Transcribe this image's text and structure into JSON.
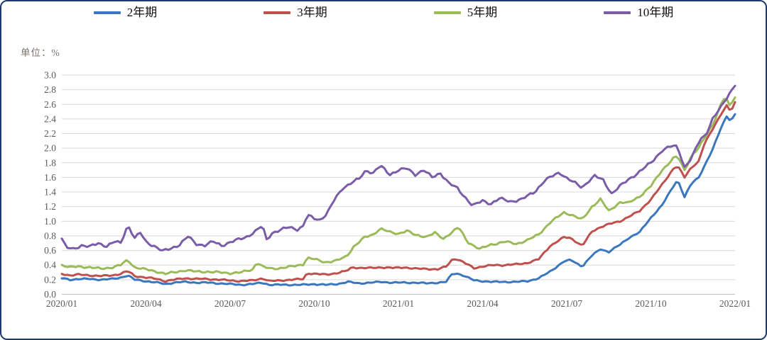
{
  "chart_data": {
    "type": "line",
    "title": "",
    "unit_label": "单位：%",
    "x_axis": {
      "ticks": [
        "2020/01",
        "2020/04",
        "2020/07",
        "2020/10",
        "2021/01",
        "2021/04",
        "2021/07",
        "2021/10",
        "2022/01"
      ],
      "tick_interval_months": 3,
      "range_months": [
        0,
        24
      ]
    },
    "y_axis": {
      "min": 0.0,
      "max": 3.0,
      "step": 0.2,
      "tick_labels": [
        "0.0",
        "0.2",
        "0.4",
        "0.6",
        "0.8",
        "1.0",
        "1.2",
        "1.4",
        "1.6",
        "1.8",
        "2.0",
        "2.2",
        "2.4",
        "2.6",
        "2.8",
        "3.0"
      ]
    },
    "grid": "horizontal",
    "legend_position": "top",
    "gridline_color": "#d9d9d9",
    "axis_line_color": "#bfbfbf",
    "series": [
      {
        "name": "2年期",
        "color": "#3a77bf",
        "points": [
          [
            0,
            0.22
          ],
          [
            0.3,
            0.2
          ],
          [
            0.6,
            0.21
          ],
          [
            1,
            0.21
          ],
          [
            1.4,
            0.2
          ],
          [
            1.8,
            0.21
          ],
          [
            2.1,
            0.23
          ],
          [
            2.35,
            0.26
          ],
          [
            2.6,
            0.2
          ],
          [
            3,
            0.18
          ],
          [
            3.4,
            0.16
          ],
          [
            3.7,
            0.14
          ],
          [
            4,
            0.16
          ],
          [
            4.4,
            0.17
          ],
          [
            4.8,
            0.16
          ],
          [
            5.2,
            0.16
          ],
          [
            5.6,
            0.15
          ],
          [
            6,
            0.14
          ],
          [
            6.4,
            0.13
          ],
          [
            6.8,
            0.14
          ],
          [
            7.15,
            0.16
          ],
          [
            7.4,
            0.13
          ],
          [
            7.8,
            0.13
          ],
          [
            8.2,
            0.13
          ],
          [
            8.6,
            0.13
          ],
          [
            9,
            0.14
          ],
          [
            9.4,
            0.13
          ],
          [
            9.8,
            0.14
          ],
          [
            10.2,
            0.17
          ],
          [
            10.6,
            0.15
          ],
          [
            11,
            0.16
          ],
          [
            11.4,
            0.17
          ],
          [
            11.8,
            0.16
          ],
          [
            12.2,
            0.16
          ],
          [
            12.6,
            0.16
          ],
          [
            13,
            0.15
          ],
          [
            13.4,
            0.16
          ],
          [
            13.7,
            0.17
          ],
          [
            13.9,
            0.27
          ],
          [
            14.05,
            0.29
          ],
          [
            14.3,
            0.26
          ],
          [
            14.7,
            0.19
          ],
          [
            15,
            0.18
          ],
          [
            15.4,
            0.17
          ],
          [
            15.8,
            0.17
          ],
          [
            16.2,
            0.17
          ],
          [
            16.6,
            0.18
          ],
          [
            17,
            0.22
          ],
          [
            17.4,
            0.31
          ],
          [
            17.9,
            0.45
          ],
          [
            18.15,
            0.47
          ],
          [
            18.55,
            0.38
          ],
          [
            18.9,
            0.53
          ],
          [
            19.2,
            0.62
          ],
          [
            19.5,
            0.58
          ],
          [
            19.9,
            0.68
          ],
          [
            20.2,
            0.77
          ],
          [
            20.6,
            0.85
          ],
          [
            21,
            1.05
          ],
          [
            21.4,
            1.22
          ],
          [
            21.8,
            1.48
          ],
          [
            21.95,
            1.57
          ],
          [
            22.2,
            1.33
          ],
          [
            22.45,
            1.52
          ],
          [
            22.7,
            1.6
          ],
          [
            22.9,
            1.75
          ],
          [
            23.2,
            1.98
          ],
          [
            23.5,
            2.28
          ],
          [
            23.7,
            2.44
          ],
          [
            23.85,
            2.37
          ],
          [
            24,
            2.46
          ]
        ]
      },
      {
        "name": "3年期",
        "color": "#c0504d",
        "points": [
          [
            0,
            0.28
          ],
          [
            0.3,
            0.26
          ],
          [
            0.6,
            0.27
          ],
          [
            1,
            0.26
          ],
          [
            1.4,
            0.25
          ],
          [
            1.8,
            0.26
          ],
          [
            2.1,
            0.28
          ],
          [
            2.35,
            0.32
          ],
          [
            2.6,
            0.25
          ],
          [
            3,
            0.23
          ],
          [
            3.4,
            0.21
          ],
          [
            3.7,
            0.18
          ],
          [
            4,
            0.2
          ],
          [
            4.4,
            0.22
          ],
          [
            4.8,
            0.21
          ],
          [
            5.2,
            0.21
          ],
          [
            5.6,
            0.2
          ],
          [
            6,
            0.19
          ],
          [
            6.4,
            0.18
          ],
          [
            6.8,
            0.19
          ],
          [
            7.15,
            0.22
          ],
          [
            7.4,
            0.18
          ],
          [
            7.8,
            0.19
          ],
          [
            8.2,
            0.2
          ],
          [
            8.6,
            0.21
          ],
          [
            8.75,
            0.29
          ],
          [
            9,
            0.28
          ],
          [
            9.4,
            0.27
          ],
          [
            9.8,
            0.29
          ],
          [
            10.15,
            0.32
          ],
          [
            10.35,
            0.37
          ],
          [
            10.7,
            0.36
          ],
          [
            11,
            0.36
          ],
          [
            11.4,
            0.37
          ],
          [
            11.8,
            0.36
          ],
          [
            12.2,
            0.37
          ],
          [
            12.6,
            0.35
          ],
          [
            13,
            0.35
          ],
          [
            13.4,
            0.34
          ],
          [
            13.7,
            0.38
          ],
          [
            13.9,
            0.47
          ],
          [
            14.05,
            0.49
          ],
          [
            14.3,
            0.44
          ],
          [
            14.7,
            0.36
          ],
          [
            15,
            0.38
          ],
          [
            15.4,
            0.4
          ],
          [
            15.8,
            0.4
          ],
          [
            16.2,
            0.41
          ],
          [
            16.6,
            0.43
          ],
          [
            17,
            0.48
          ],
          [
            17.4,
            0.66
          ],
          [
            17.9,
            0.78
          ],
          [
            18.15,
            0.77
          ],
          [
            18.55,
            0.66
          ],
          [
            18.9,
            0.86
          ],
          [
            19.2,
            0.92
          ],
          [
            19.5,
            0.96
          ],
          [
            19.9,
            1.0
          ],
          [
            20.2,
            1.06
          ],
          [
            20.6,
            1.14
          ],
          [
            21,
            1.3
          ],
          [
            21.4,
            1.5
          ],
          [
            21.8,
            1.72
          ],
          [
            21.95,
            1.76
          ],
          [
            22.2,
            1.6
          ],
          [
            22.45,
            1.74
          ],
          [
            22.7,
            1.82
          ],
          [
            22.9,
            2.05
          ],
          [
            23.2,
            2.26
          ],
          [
            23.5,
            2.47
          ],
          [
            23.7,
            2.58
          ],
          [
            23.85,
            2.5
          ],
          [
            24,
            2.62
          ]
        ]
      },
      {
        "name": "5年期",
        "color": "#9bbb59",
        "points": [
          [
            0,
            0.4
          ],
          [
            0.3,
            0.37
          ],
          [
            0.6,
            0.38
          ],
          [
            1,
            0.37
          ],
          [
            1.4,
            0.35
          ],
          [
            1.8,
            0.37
          ],
          [
            2.1,
            0.4
          ],
          [
            2.35,
            0.47
          ],
          [
            2.6,
            0.37
          ],
          [
            3,
            0.34
          ],
          [
            3.4,
            0.31
          ],
          [
            3.7,
            0.28
          ],
          [
            4,
            0.3
          ],
          [
            4.4,
            0.33
          ],
          [
            4.8,
            0.31
          ],
          [
            5.2,
            0.31
          ],
          [
            5.6,
            0.3
          ],
          [
            6,
            0.29
          ],
          [
            6.4,
            0.3
          ],
          [
            6.8,
            0.34
          ],
          [
            6.95,
            0.44
          ],
          [
            7.2,
            0.37
          ],
          [
            7.5,
            0.35
          ],
          [
            7.8,
            0.36
          ],
          [
            8.2,
            0.38
          ],
          [
            8.6,
            0.41
          ],
          [
            8.75,
            0.5
          ],
          [
            9,
            0.48
          ],
          [
            9.4,
            0.44
          ],
          [
            9.8,
            0.46
          ],
          [
            10.15,
            0.52
          ],
          [
            10.4,
            0.65
          ],
          [
            10.8,
            0.78
          ],
          [
            11.1,
            0.82
          ],
          [
            11.35,
            0.9
          ],
          [
            11.7,
            0.85
          ],
          [
            12,
            0.83
          ],
          [
            12.3,
            0.87
          ],
          [
            12.6,
            0.81
          ],
          [
            13,
            0.79
          ],
          [
            13.3,
            0.84
          ],
          [
            13.6,
            0.76
          ],
          [
            13.9,
            0.85
          ],
          [
            14.15,
            0.92
          ],
          [
            14.45,
            0.72
          ],
          [
            14.9,
            0.62
          ],
          [
            15.3,
            0.68
          ],
          [
            15.8,
            0.72
          ],
          [
            16.2,
            0.69
          ],
          [
            16.6,
            0.74
          ],
          [
            17,
            0.82
          ],
          [
            17.4,
            0.98
          ],
          [
            17.9,
            1.12
          ],
          [
            18.15,
            1.09
          ],
          [
            18.55,
            1.02
          ],
          [
            18.9,
            1.2
          ],
          [
            19.2,
            1.3
          ],
          [
            19.5,
            1.14
          ],
          [
            19.9,
            1.26
          ],
          [
            20.2,
            1.25
          ],
          [
            20.6,
            1.34
          ],
          [
            21,
            1.48
          ],
          [
            21.4,
            1.7
          ],
          [
            21.8,
            1.86
          ],
          [
            21.95,
            1.89
          ],
          [
            22.2,
            1.7
          ],
          [
            22.45,
            1.9
          ],
          [
            22.7,
            2.0
          ],
          [
            22.9,
            2.13
          ],
          [
            23.2,
            2.32
          ],
          [
            23.5,
            2.6
          ],
          [
            23.65,
            2.71
          ],
          [
            23.8,
            2.58
          ],
          [
            24,
            2.7
          ]
        ]
      },
      {
        "name": "10年期",
        "color": "#7a5ca8",
        "points": [
          [
            0,
            0.76
          ],
          [
            0.15,
            0.64
          ],
          [
            0.4,
            0.62
          ],
          [
            0.7,
            0.67
          ],
          [
            1,
            0.65
          ],
          [
            1.3,
            0.7
          ],
          [
            1.6,
            0.66
          ],
          [
            1.9,
            0.72
          ],
          [
            2.1,
            0.7
          ],
          [
            2.35,
            0.95
          ],
          [
            2.6,
            0.77
          ],
          [
            2.8,
            0.84
          ],
          [
            3,
            0.72
          ],
          [
            3.3,
            0.66
          ],
          [
            3.6,
            0.59
          ],
          [
            3.9,
            0.63
          ],
          [
            4.2,
            0.68
          ],
          [
            4.5,
            0.79
          ],
          [
            4.8,
            0.69
          ],
          [
            5.1,
            0.67
          ],
          [
            5.4,
            0.72
          ],
          [
            5.7,
            0.67
          ],
          [
            6,
            0.71
          ],
          [
            6.3,
            0.75
          ],
          [
            6.6,
            0.79
          ],
          [
            6.9,
            0.86
          ],
          [
            7.15,
            0.94
          ],
          [
            7.3,
            0.75
          ],
          [
            7.5,
            0.84
          ],
          [
            7.8,
            0.88
          ],
          [
            8.1,
            0.92
          ],
          [
            8.4,
            0.89
          ],
          [
            8.6,
            0.93
          ],
          [
            8.75,
            1.08
          ],
          [
            9,
            1.04
          ],
          [
            9.2,
            1.02
          ],
          [
            9.45,
            1.1
          ],
          [
            9.7,
            1.28
          ],
          [
            10,
            1.45
          ],
          [
            10.3,
            1.52
          ],
          [
            10.6,
            1.58
          ],
          [
            10.85,
            1.7
          ],
          [
            11.1,
            1.66
          ],
          [
            11.35,
            1.76
          ],
          [
            11.7,
            1.64
          ],
          [
            12,
            1.7
          ],
          [
            12.3,
            1.72
          ],
          [
            12.6,
            1.64
          ],
          [
            12.9,
            1.7
          ],
          [
            13.2,
            1.6
          ],
          [
            13.5,
            1.66
          ],
          [
            13.8,
            1.52
          ],
          [
            14.1,
            1.45
          ],
          [
            14.4,
            1.32
          ],
          [
            14.65,
            1.21
          ],
          [
            15,
            1.28
          ],
          [
            15.3,
            1.24
          ],
          [
            15.6,
            1.31
          ],
          [
            16,
            1.27
          ],
          [
            16.4,
            1.3
          ],
          [
            16.85,
            1.4
          ],
          [
            17.2,
            1.55
          ],
          [
            17.5,
            1.62
          ],
          [
            17.75,
            1.67
          ],
          [
            18,
            1.59
          ],
          [
            18.3,
            1.52
          ],
          [
            18.55,
            1.46
          ],
          [
            18.8,
            1.56
          ],
          [
            19,
            1.62
          ],
          [
            19.3,
            1.56
          ],
          [
            19.6,
            1.38
          ],
          [
            19.9,
            1.48
          ],
          [
            20.2,
            1.57
          ],
          [
            20.6,
            1.68
          ],
          [
            21,
            1.8
          ],
          [
            21.4,
            1.97
          ],
          [
            21.75,
            2.03
          ],
          [
            21.95,
            2.02
          ],
          [
            22.2,
            1.74
          ],
          [
            22.45,
            1.86
          ],
          [
            22.75,
            2.12
          ],
          [
            22.95,
            2.18
          ],
          [
            23.2,
            2.4
          ],
          [
            23.5,
            2.56
          ],
          [
            23.75,
            2.72
          ],
          [
            24,
            2.87
          ]
        ]
      }
    ]
  }
}
